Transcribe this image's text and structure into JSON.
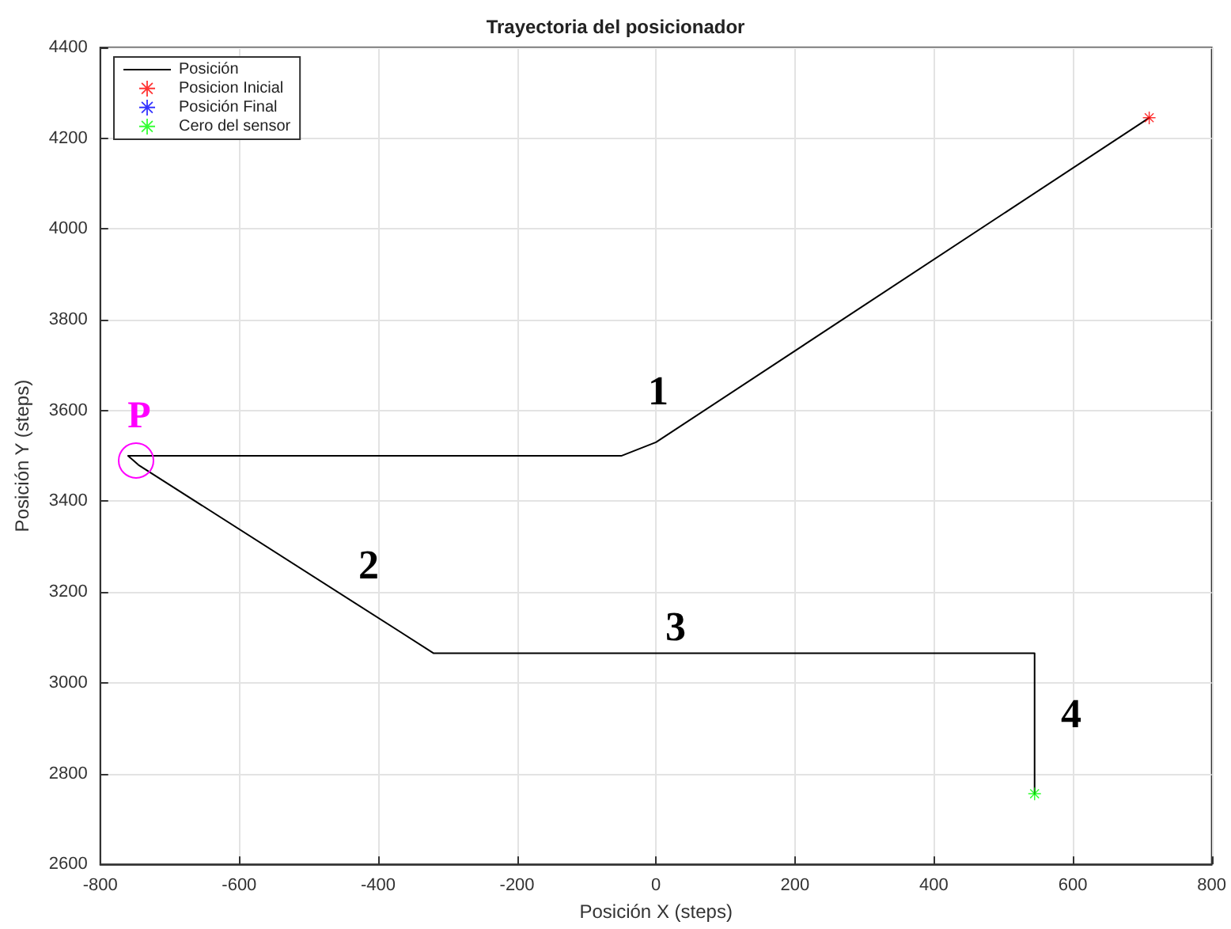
{
  "chart_data": {
    "type": "line",
    "title": "Trayectoria del posicionador",
    "xlabel": "Posición X (steps)",
    "ylabel": "Posición Y (steps)",
    "xlim": [
      -800,
      800
    ],
    "xticks": [
      -800,
      -600,
      -400,
      -200,
      0,
      200,
      400,
      600,
      800
    ],
    "ylim": [
      2600,
      4400
    ],
    "yticks": [
      2600,
      2800,
      3000,
      3200,
      3400,
      3600,
      3800,
      4000,
      4200,
      4400
    ],
    "grid": true,
    "legend": "top left",
    "series": [
      {
        "name": "Posición",
        "type": "line",
        "color": "#000000",
        "marker": "none",
        "x": [
          710,
          0,
          -50,
          -760,
          -745,
          -320,
          545,
          545
        ],
        "values": [
          4245,
          3530,
          3500,
          3500,
          3480,
          3065,
          3065,
          2755
        ]
      },
      {
        "name": "Posicion Inicial",
        "type": "scatter",
        "color": "#ff0000",
        "marker": "star",
        "x": [
          710
        ],
        "values": [
          4245
        ]
      },
      {
        "name": "Posición Final",
        "type": "scatter",
        "color": "#0000ff",
        "marker": "star"
      },
      {
        "name": "Cero del sensor",
        "type": "scatter",
        "color": "#00ff00",
        "marker": "star",
        "x": [
          545
        ],
        "values": [
          2755
        ]
      }
    ],
    "annotations": [
      "P",
      "1",
      "2",
      "3",
      "4"
    ]
  }
}
